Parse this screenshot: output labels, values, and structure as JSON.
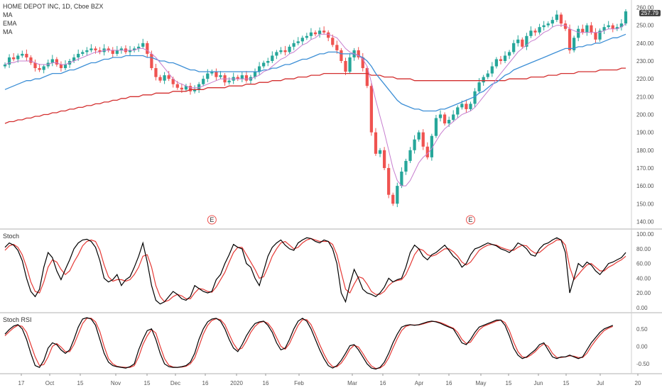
{
  "header": {
    "title": "HOME DEPOT INC, 1D, Cboe BZX",
    "indicators": [
      "MA",
      "EMA",
      "MA"
    ],
    "last_price": "257.79"
  },
  "panes": {
    "stoch_label": "Stoch",
    "stochrsi_label": "Stoch RSI"
  },
  "earnings_marker": "E",
  "colors": {
    "up": "#26a69a",
    "down": "#ef5350",
    "ma_fast": "#c77ecf",
    "ema": "#3d8fd6",
    "ma_slow": "#d32f2f",
    "k_line": "#000000",
    "d_line": "#e53935"
  },
  "chart_data": [
    {
      "type": "line",
      "subtype": "candlestick",
      "title": "HOME DEPOT INC, 1D, Cboe BZX",
      "x_ticks": [
        "17",
        "Oct",
        "15",
        "Nov",
        "15",
        "Dec",
        "16",
        "2020",
        "16",
        "Feb",
        "Mar",
        "16",
        "Apr",
        "16",
        "May",
        "15",
        "Jun",
        "15",
        "Jul",
        "20"
      ],
      "y_ticks": [
        "260.00",
        "250.00",
        "240.00",
        "230.00",
        "220.00",
        "210.00",
        "200.00",
        "190.00",
        "180.00",
        "170.00",
        "160.00",
        "150.00",
        "140.00"
      ],
      "ylim": [
        137,
        261
      ],
      "closes": [
        228,
        232,
        231,
        233,
        234,
        232,
        229,
        226,
        225,
        227,
        229,
        231,
        228,
        226,
        228,
        230,
        232,
        234,
        235,
        236,
        237,
        236,
        235,
        237,
        236,
        234,
        236,
        237,
        235,
        236,
        237,
        238,
        240,
        234,
        226,
        221,
        219,
        222,
        220,
        217,
        215,
        214,
        216,
        213,
        214,
        217,
        220,
        223,
        224,
        221,
        222,
        218,
        219,
        221,
        220,
        222,
        219,
        221,
        224,
        227,
        229,
        230,
        233,
        235,
        236,
        235,
        238,
        240,
        241,
        243,
        244,
        246,
        245,
        247,
        246,
        243,
        239,
        236,
        230,
        224,
        232,
        236,
        232,
        226,
        216,
        190,
        178,
        180,
        170,
        155,
        150,
        160,
        168,
        174,
        180,
        186,
        190,
        182,
        176,
        188,
        198,
        200,
        195,
        197,
        200,
        204,
        206,
        203,
        206,
        213,
        218,
        221,
        223,
        227,
        231,
        230,
        233,
        235,
        240,
        242,
        238,
        244,
        247,
        246,
        249,
        250,
        251,
        253,
        256,
        251,
        248,
        236,
        243,
        248,
        246,
        250,
        246,
        242,
        247,
        249,
        250,
        248,
        249,
        251,
        257.79
      ],
      "ma_fast": [
        228,
        229,
        229,
        230,
        230,
        230,
        230,
        229,
        228,
        228,
        228,
        229,
        229,
        228,
        228,
        229,
        230,
        231,
        232,
        233,
        234,
        235,
        235,
        236,
        236,
        236,
        236,
        236,
        236,
        236,
        236,
        237,
        237,
        236,
        234,
        232,
        229,
        226,
        223,
        220,
        218,
        217,
        216,
        215,
        215,
        215,
        216,
        217,
        218,
        219,
        220,
        220,
        220,
        220,
        220,
        220,
        220,
        220,
        221,
        222,
        224,
        225,
        227,
        229,
        231,
        232,
        234,
        235,
        237,
        239,
        240,
        242,
        243,
        245,
        245,
        245,
        244,
        243,
        240,
        237,
        235,
        234,
        233,
        231,
        227,
        218,
        208,
        199,
        190,
        180,
        170,
        163,
        160,
        160,
        163,
        168,
        173,
        176,
        178,
        181,
        185,
        189,
        192,
        194,
        196,
        198,
        200,
        201,
        202,
        204,
        207,
        210,
        213,
        216,
        220,
        223,
        226,
        229,
        232,
        235,
        237,
        239,
        241,
        242,
        244,
        246,
        247,
        249,
        250,
        250,
        250,
        248,
        247,
        246,
        246,
        246,
        246,
        246,
        246,
        247,
        248,
        248,
        248,
        249,
        251
      ],
      "ema": [
        214,
        215,
        216,
        217,
        218,
        219,
        219,
        220,
        220,
        221,
        222,
        223,
        223,
        223,
        224,
        225,
        225,
        226,
        227,
        228,
        229,
        229,
        230,
        231,
        231,
        232,
        232,
        232,
        233,
        233,
        233,
        233,
        233,
        232,
        232,
        231,
        230,
        230,
        229,
        229,
        228,
        227,
        226,
        225,
        225,
        224,
        224,
        224,
        224,
        224,
        224,
        224,
        224,
        224,
        224,
        224,
        224,
        224,
        224,
        224,
        225,
        225,
        226,
        226,
        227,
        228,
        228,
        229,
        230,
        231,
        231,
        232,
        233,
        234,
        234,
        235,
        235,
        235,
        234,
        234,
        234,
        234,
        233,
        232,
        230,
        227,
        223,
        220,
        217,
        214,
        211,
        208,
        206,
        205,
        204,
        203,
        203,
        202,
        202,
        202,
        202,
        203,
        203,
        204,
        205,
        206,
        207,
        208,
        209,
        210,
        212,
        213,
        215,
        217,
        218,
        220,
        222,
        223,
        225,
        226,
        227,
        228,
        229,
        230,
        231,
        232,
        233,
        234,
        235,
        236,
        237,
        237,
        237,
        238,
        238,
        239,
        239,
        240,
        240,
        241,
        242,
        243,
        243,
        244,
        245
      ],
      "ma_slow": [
        195,
        196,
        196,
        197,
        197,
        198,
        198,
        199,
        199,
        200,
        200,
        201,
        201,
        202,
        202,
        203,
        203,
        204,
        204,
        205,
        205,
        206,
        206,
        207,
        207,
        208,
        208,
        209,
        209,
        210,
        210,
        210,
        211,
        211,
        211,
        212,
        212,
        212,
        212,
        213,
        213,
        213,
        213,
        214,
        214,
        214,
        214,
        215,
        215,
        215,
        215,
        215,
        216,
        216,
        216,
        216,
        217,
        217,
        217,
        218,
        218,
        218,
        219,
        219,
        219,
        220,
        220,
        220,
        221,
        221,
        221,
        222,
        222,
        222,
        223,
        223,
        223,
        223,
        223,
        223,
        223,
        223,
        223,
        223,
        223,
        222,
        222,
        222,
        221,
        221,
        221,
        220,
        220,
        220,
        220,
        219,
        219,
        219,
        219,
        219,
        219,
        219,
        219,
        219,
        219,
        219,
        219,
        219,
        219,
        219,
        219,
        219,
        219,
        219,
        219,
        219,
        219,
        220,
        220,
        220,
        220,
        220,
        221,
        221,
        221,
        221,
        222,
        222,
        222,
        223,
        223,
        223,
        223,
        224,
        224,
        224,
        224,
        224,
        225,
        225,
        225,
        225,
        225,
        226,
        226
      ]
    },
    {
      "type": "line",
      "title": "Stoch",
      "y_ticks": [
        "100.00",
        "80.00",
        "60.00",
        "40.00",
        "20.00",
        "0.00"
      ],
      "ylim": [
        -4,
        104
      ],
      "series": [
        {
          "name": "",
          "values": [
            82,
            88,
            85,
            78,
            64,
            40,
            22,
            15,
            25,
            55,
            75,
            68,
            50,
            38,
            52,
            65,
            80,
            88,
            92,
            93,
            90,
            82,
            64,
            40,
            35,
            38,
            45,
            30,
            38,
            42,
            55,
            70,
            88,
            62,
            30,
            10,
            5,
            8,
            15,
            22,
            18,
            12,
            10,
            15,
            30,
            26,
            22,
            20,
            22,
            38,
            45,
            60,
            72,
            86,
            82,
            80,
            60,
            55,
            40,
            30,
            50,
            70,
            82,
            88,
            92,
            85,
            80,
            78,
            88,
            92,
            95,
            94,
            90,
            88,
            92,
            90,
            80,
            60,
            20,
            8,
            32,
            52,
            40,
            25,
            20,
            18,
            15,
            20,
            28,
            40,
            35,
            38,
            40,
            55,
            75,
            85,
            80,
            70,
            65,
            72,
            75,
            80,
            85,
            78,
            70,
            65,
            55,
            60,
            72,
            80,
            82,
            85,
            88,
            86,
            84,
            80,
            78,
            75,
            80,
            88,
            85,
            80,
            72,
            70,
            80,
            86,
            88,
            92,
            95,
            92,
            75,
            20,
            40,
            60,
            55,
            62,
            58,
            50,
            45,
            52,
            60,
            62,
            65,
            68,
            75
          ]
        },
        {
          "name": "",
          "values": [
            78,
            84,
            86,
            82,
            72,
            55,
            35,
            22,
            20,
            35,
            55,
            65,
            62,
            52,
            45,
            50,
            62,
            72,
            84,
            90,
            92,
            90,
            78,
            58,
            42,
            36,
            38,
            38,
            36,
            38,
            45,
            55,
            70,
            72,
            55,
            30,
            15,
            8,
            10,
            15,
            18,
            16,
            12,
            12,
            20,
            26,
            25,
            22,
            21,
            28,
            38,
            48,
            62,
            75,
            82,
            82,
            72,
            62,
            52,
            40,
            42,
            55,
            70,
            80,
            88,
            90,
            85,
            80,
            82,
            88,
            92,
            94,
            92,
            90,
            90,
            90,
            86,
            72,
            48,
            25,
            20,
            32,
            42,
            40,
            32,
            22,
            18,
            18,
            22,
            30,
            35,
            37,
            38,
            45,
            58,
            72,
            80,
            78,
            72,
            70,
            72,
            76,
            80,
            80,
            76,
            70,
            62,
            58,
            62,
            70,
            78,
            82,
            85,
            86,
            85,
            82,
            80,
            78,
            78,
            82,
            85,
            84,
            78,
            74,
            75,
            80,
            85,
            88,
            92,
            92,
            85,
            55,
            38,
            45,
            52,
            58,
            60,
            55,
            50,
            50,
            55,
            58,
            62,
            65,
            70
          ]
        }
      ]
    },
    {
      "type": "line",
      "title": "Stoch RSI",
      "y_ticks": [
        "0.50",
        "0.00",
        "-0.50"
      ],
      "ylim": [
        -0.72,
        0.9
      ],
      "series": [
        {
          "name": "",
          "values": [
            0.35,
            0.48,
            0.58,
            0.62,
            0.5,
            0.2,
            -0.2,
            -0.55,
            -0.6,
            -0.4,
            -0.05,
            0.1,
            0.05,
            -0.1,
            -0.2,
            -0.1,
            0.2,
            0.55,
            0.78,
            0.82,
            0.78,
            0.6,
            0.2,
            -0.2,
            -0.45,
            -0.55,
            -0.58,
            -0.6,
            -0.62,
            -0.58,
            -0.5,
            -0.1,
            0.2,
            0.45,
            0.5,
            0.2,
            -0.2,
            -0.5,
            -0.58,
            -0.6,
            -0.6,
            -0.58,
            -0.55,
            -0.45,
            -0.2,
            0.2,
            0.5,
            0.7,
            0.78,
            0.8,
            0.72,
            0.5,
            0.2,
            -0.05,
            -0.15,
            0.05,
            0.3,
            0.5,
            0.65,
            0.7,
            0.72,
            0.6,
            0.4,
            0.1,
            -0.1,
            -0.05,
            0.2,
            0.5,
            0.72,
            0.8,
            0.72,
            0.5,
            0.2,
            -0.1,
            -0.35,
            -0.55,
            -0.62,
            -0.55,
            -0.4,
            -0.2,
            0.02,
            0.05,
            -0.1,
            -0.3,
            -0.5,
            -0.62,
            -0.65,
            -0.6,
            -0.45,
            -0.2,
            0.1,
            0.35,
            0.55,
            0.6,
            0.62,
            0.6,
            0.62,
            0.66,
            0.7,
            0.72,
            0.7,
            0.66,
            0.6,
            0.55,
            0.5,
            0.3,
            0.1,
            0.05,
            0.2,
            0.4,
            0.55,
            0.6,
            0.65,
            0.7,
            0.75,
            0.75,
            0.6,
            0.3,
            -0.05,
            -0.25,
            -0.35,
            -0.3,
            -0.2,
            -0.1,
            0.05,
            0.1,
            -0.1,
            -0.3,
            -0.35,
            -0.3,
            -0.3,
            -0.25,
            -0.3,
            -0.35,
            -0.3,
            -0.1,
            0.1,
            0.25,
            0.4,
            0.5,
            0.55,
            0.6
          ]
        },
        {
          "name": "",
          "values": [
            0.3,
            0.42,
            0.53,
            0.6,
            0.57,
            0.4,
            0.05,
            -0.3,
            -0.55,
            -0.52,
            -0.3,
            0.0,
            0.08,
            -0.02,
            -0.15,
            -0.15,
            0.05,
            0.35,
            0.65,
            0.8,
            0.8,
            0.7,
            0.42,
            0.0,
            -0.35,
            -0.5,
            -0.57,
            -0.59,
            -0.6,
            -0.6,
            -0.55,
            -0.3,
            0.05,
            0.3,
            0.48,
            0.38,
            0.0,
            -0.35,
            -0.54,
            -0.59,
            -0.6,
            -0.59,
            -0.57,
            -0.5,
            -0.33,
            0.0,
            0.35,
            0.6,
            0.74,
            0.79,
            0.76,
            0.62,
            0.35,
            0.08,
            -0.1,
            -0.05,
            0.15,
            0.4,
            0.57,
            0.68,
            0.71,
            0.66,
            0.5,
            0.25,
            0.0,
            -0.08,
            0.08,
            0.35,
            0.6,
            0.76,
            0.76,
            0.62,
            0.35,
            0.05,
            -0.22,
            -0.45,
            -0.58,
            -0.58,
            -0.48,
            -0.3,
            -0.08,
            0.03,
            -0.02,
            -0.2,
            -0.4,
            -0.56,
            -0.63,
            -0.62,
            -0.53,
            -0.33,
            -0.05,
            0.22,
            0.45,
            0.57,
            0.61,
            0.61,
            0.61,
            0.64,
            0.68,
            0.71,
            0.71,
            0.68,
            0.63,
            0.57,
            0.52,
            0.4,
            0.2,
            0.08,
            0.12,
            0.3,
            0.47,
            0.57,
            0.62,
            0.67,
            0.72,
            0.75,
            0.68,
            0.45,
            0.12,
            -0.15,
            -0.3,
            -0.32,
            -0.25,
            -0.15,
            -0.02,
            0.07,
            0.0,
            -0.2,
            -0.32,
            -0.32,
            -0.3,
            -0.27,
            -0.28,
            -0.32,
            -0.32,
            -0.2,
            0.0,
            0.17,
            0.32,
            0.45,
            0.52,
            0.57
          ]
        }
      ]
    }
  ]
}
